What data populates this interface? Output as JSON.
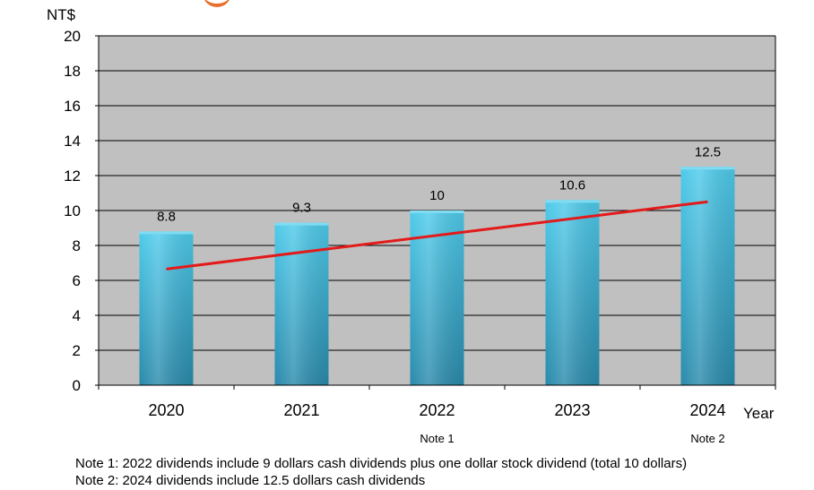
{
  "chart_data": {
    "type": "bar",
    "categories": [
      "2020",
      "2021",
      "2022",
      "2023",
      "2024"
    ],
    "values": [
      8.8,
      9.3,
      10,
      10.6,
      12.5
    ],
    "value_labels": [
      "8.8",
      "9.3",
      "10",
      "10.6",
      "12.5"
    ],
    "ylabel": "NT$",
    "xlabel": "Year",
    "ylim": [
      0,
      20
    ],
    "yticks": [
      "0",
      "2",
      "4",
      "6",
      "8",
      "10",
      "12",
      "14",
      "16",
      "18",
      "20"
    ],
    "grid": true,
    "trendline": {
      "color": "#e31a1a",
      "start_value": 6.65,
      "end_value": 10.5
    },
    "category_notes": [
      "",
      "",
      "Note 1",
      "",
      "Note 2"
    ],
    "colors": {
      "bar_top": "#4fcbeb",
      "bar_bottom": "#2a8aab",
      "plot_bg": "#c0c0c0",
      "grid": "#000000"
    }
  },
  "footnotes": [
    "Note 1: 2022 dividends include 9 dollars cash dividends plus one dollar stock dividend (total 10 dollars)",
    "Note 2: 2024 dividends include 12.5 dollars cash dividends"
  ]
}
